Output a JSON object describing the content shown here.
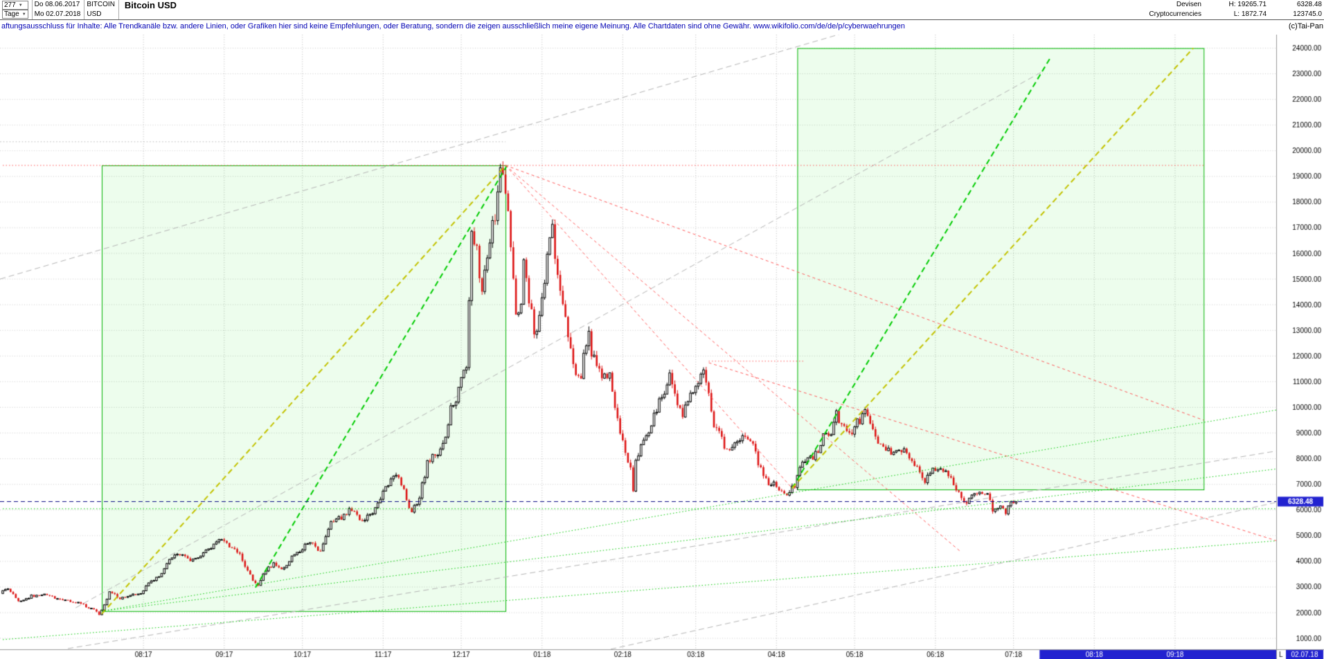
{
  "header": {
    "bars_count": "277",
    "timeframe": "Tage",
    "date_from": "Do 08.06.2017",
    "date_to": "Mo 02.07.2018",
    "symbol": "BITCOIN",
    "currency": "USD",
    "title": "Bitcoin USD",
    "category_line1": "Devisen",
    "category_line2": "Cryptocurrencies",
    "high": "H: 19265.71",
    "low": "L: 1872.74",
    "last_price": "6328.48",
    "volume": "123745.0"
  },
  "disclaimer": {
    "text": "aftungsausschluss für Inhalte: Alle Trendkanäle bzw. andere Linien, oder Grafiken hier sind keine Empfehlungen, oder Beratung, sondern die zeigen ausschließlich meine eigene Meinung. Alle Chartdaten sind ohne Gewähr.  www.wikifolio.com/de/de/p/cyberwaehrungen",
    "copyright": "(c)Tai-Pan"
  },
  "colors": {
    "up_border": "#000000",
    "up_fill": "#ffffff",
    "down": "#dd1414",
    "box_border": "#00b400",
    "box_fill": "rgba(0,220,0,0.07)",
    "green": "#00cc00",
    "yellow": "#c3c300",
    "red": "#ff5a5a",
    "gray": "#b4b4b4",
    "navy": "#000080",
    "blue_tag": "#2222d0",
    "axis_text": "#000000"
  },
  "chart_data": {
    "type": "candlestick",
    "title": "Bitcoin USD",
    "period_from": "08.06.2017",
    "period_to": "02.07.2018",
    "high": 19265.71,
    "low": 1872.74,
    "current_price": 6328.48,
    "current_price_label": "6328.48",
    "last_day": 389,
    "y_axis": {
      "min": 1000,
      "max": 24000,
      "step": 1000
    },
    "x_axis": {
      "ticks": [
        {
          "label": "08:17",
          "day": 54
        },
        {
          "label": "09:17",
          "day": 85
        },
        {
          "label": "10:17",
          "day": 115
        },
        {
          "label": "11:17",
          "day": 146
        },
        {
          "label": "12:17",
          "day": 176
        },
        {
          "label": "01:18",
          "day": 207
        },
        {
          "label": "02:18",
          "day": 238
        },
        {
          "label": "03:18",
          "day": 266
        },
        {
          "label": "04:18",
          "day": 297
        },
        {
          "label": "05:18",
          "day": 327
        },
        {
          "label": "06:18",
          "day": 358
        },
        {
          "label": "07:18",
          "day": 388
        },
        {
          "label": "08:18",
          "day": 419
        },
        {
          "label": "09:18",
          "day": 450
        }
      ],
      "future_highlight_from_day": 398,
      "last_marker": "L",
      "last_date": "02.07.18"
    },
    "price_waypoints": [
      [
        0,
        2750
      ],
      [
        3,
        2950
      ],
      [
        7,
        2420
      ],
      [
        12,
        2650
      ],
      [
        17,
        2700
      ],
      [
        20,
        2600
      ],
      [
        24,
        2500
      ],
      [
        27,
        2450
      ],
      [
        31,
        2350
      ],
      [
        33,
        2250
      ],
      [
        36,
        2100
      ],
      [
        38,
        1950
      ],
      [
        40,
        2300
      ],
      [
        42,
        2800
      ],
      [
        44,
        2700
      ],
      [
        46,
        2550
      ],
      [
        48,
        2600
      ],
      [
        50,
        2700
      ],
      [
        52,
        2740
      ],
      [
        54,
        2780
      ],
      [
        56,
        3000
      ],
      [
        58,
        3250
      ],
      [
        61,
        3420
      ],
      [
        63,
        3700
      ],
      [
        65,
        4050
      ],
      [
        68,
        4350
      ],
      [
        71,
        4150
      ],
      [
        73,
        4080
      ],
      [
        75,
        4050
      ],
      [
        77,
        4200
      ],
      [
        79,
        4380
      ],
      [
        81,
        4500
      ],
      [
        83,
        4700
      ],
      [
        85,
        4850
      ],
      [
        88,
        4600
      ],
      [
        90,
        4400
      ],
      [
        92,
        4250
      ],
      [
        95,
        3650
      ],
      [
        97,
        3300
      ],
      [
        99,
        3050
      ],
      [
        101,
        3450
      ],
      [
        103,
        3750
      ],
      [
        105,
        3900
      ],
      [
        107,
        3750
      ],
      [
        109,
        3700
      ],
      [
        112,
        4200
      ],
      [
        115,
        4380
      ],
      [
        117,
        4600
      ],
      [
        119,
        4750
      ],
      [
        121,
        4550
      ],
      [
        123,
        4350
      ],
      [
        125,
        5050
      ],
      [
        127,
        5600
      ],
      [
        129,
        5650
      ],
      [
        131,
        5700
      ],
      [
        133,
        5900
      ],
      [
        135,
        6050
      ],
      [
        137,
        5750
      ],
      [
        139,
        5600
      ],
      [
        141,
        5800
      ],
      [
        143,
        5950
      ],
      [
        146,
        6450
      ],
      [
        148,
        6900
      ],
      [
        150,
        7150
      ],
      [
        152,
        7300
      ],
      [
        153,
        7400
      ],
      [
        155,
        6700
      ],
      [
        156,
        6350
      ],
      [
        158,
        5900
      ],
      [
        160,
        6300
      ],
      [
        161,
        6550
      ],
      [
        163,
        7400
      ],
      [
        164,
        7900
      ],
      [
        166,
        8050
      ],
      [
        167,
        8150
      ],
      [
        169,
        8400
      ],
      [
        171,
        8800
      ],
      [
        173,
        9900
      ],
      [
        175,
        10300
      ],
      [
        176,
        10850
      ],
      [
        178,
        11300
      ],
      [
        179,
        11700
      ],
      [
        180,
        14000
      ],
      [
        181,
        16650
      ],
      [
        182,
        16450
      ],
      [
        183,
        16250
      ],
      [
        184,
        15200
      ],
      [
        185,
        14600
      ],
      [
        186,
        15500
      ],
      [
        188,
        16700
      ],
      [
        190,
        17500
      ],
      [
        191,
        18500
      ],
      [
        192,
        19200
      ],
      [
        193,
        19350
      ],
      [
        194,
        18500
      ],
      [
        195,
        17700
      ],
      [
        196,
        16400
      ],
      [
        197,
        15100
      ],
      [
        198,
        13800
      ],
      [
        199,
        13900
      ],
      [
        200,
        14000
      ],
      [
        201,
        15600
      ],
      [
        202,
        15000
      ],
      [
        203,
        14300
      ],
      [
        204,
        13600
      ],
      [
        205,
        12900
      ],
      [
        206,
        13200
      ],
      [
        207,
        13500
      ],
      [
        208,
        14300
      ],
      [
        209,
        15000
      ],
      [
        210,
        16000
      ],
      [
        212,
        17000
      ],
      [
        213,
        16000
      ],
      [
        214,
        15000
      ],
      [
        215,
        14300
      ],
      [
        217,
        13400
      ],
      [
        218,
        12800
      ],
      [
        220,
        11500
      ],
      [
        221,
        11300
      ],
      [
        223,
        11200
      ],
      [
        224,
        11900
      ],
      [
        226,
        12900
      ],
      [
        227,
        12200
      ],
      [
        229,
        11600
      ],
      [
        231,
        11300
      ],
      [
        232,
        11200
      ],
      [
        234,
        11350
      ],
      [
        236,
        10100
      ],
      [
        238,
        9100
      ],
      [
        240,
        8300
      ],
      [
        242,
        7600
      ],
      [
        243,
        6700
      ],
      [
        244,
        7800
      ],
      [
        245,
        8200
      ],
      [
        247,
        8600
      ],
      [
        249,
        9100
      ],
      [
        250,
        9450
      ],
      [
        252,
        9900
      ],
      [
        253,
        10250
      ],
      [
        255,
        10700
      ],
      [
        257,
        11250
      ],
      [
        259,
        10500
      ],
      [
        261,
        9900
      ],
      [
        262,
        9650
      ],
      [
        264,
        10350
      ],
      [
        266,
        10700
      ],
      [
        268,
        11000
      ],
      [
        270,
        11450
      ],
      [
        272,
        10700
      ],
      [
        274,
        9300
      ],
      [
        276,
        9100
      ],
      [
        277,
        8800
      ],
      [
        279,
        8250
      ],
      [
        281,
        8400
      ],
      [
        283,
        8550
      ],
      [
        285,
        8900
      ],
      [
        286,
        8950
      ],
      [
        288,
        8700
      ],
      [
        289,
        8450
      ],
      [
        291,
        7850
      ],
      [
        293,
        7400
      ],
      [
        295,
        6900
      ],
      [
        297,
        7000
      ],
      [
        299,
        6850
      ],
      [
        300,
        6750
      ],
      [
        302,
        6650
      ],
      [
        303,
        6800
      ],
      [
        305,
        6850
      ],
      [
        307,
        7600
      ],
      [
        308,
        7950
      ],
      [
        310,
        7980
      ],
      [
        311,
        8000
      ],
      [
        313,
        8200
      ],
      [
        314,
        8350
      ],
      [
        316,
        8850
      ],
      [
        318,
        8900
      ],
      [
        319,
        8950
      ],
      [
        321,
        9700
      ],
      [
        323,
        9350
      ],
      [
        324,
        9250
      ],
      [
        326,
        9150
      ],
      [
        327,
        9100
      ],
      [
        329,
        9400
      ],
      [
        330,
        9500
      ],
      [
        332,
        9750
      ],
      [
        334,
        9400
      ],
      [
        335,
        9150
      ],
      [
        337,
        8500
      ],
      [
        339,
        8470
      ],
      [
        340,
        8450
      ],
      [
        342,
        8300
      ],
      [
        343,
        8250
      ],
      [
        345,
        8350
      ],
      [
        346,
        8400
      ],
      [
        348,
        8250
      ],
      [
        349,
        8100
      ],
      [
        351,
        7800
      ],
      [
        352,
        7600
      ],
      [
        354,
        7300
      ],
      [
        355,
        7150
      ],
      [
        357,
        7450
      ],
      [
        359,
        7550
      ],
      [
        360,
        7600
      ],
      [
        362,
        7630
      ],
      [
        363,
        7650
      ],
      [
        365,
        7200
      ],
      [
        367,
        6800
      ],
      [
        369,
        6450
      ],
      [
        371,
        6350
      ],
      [
        373,
        6550
      ],
      [
        374,
        6650
      ],
      [
        376,
        6750
      ],
      [
        378,
        6700
      ],
      [
        379,
        6650
      ],
      [
        381,
        5900
      ],
      [
        383,
        6150
      ],
      [
        385,
        6000
      ],
      [
        386,
        5880
      ],
      [
        388,
        6350
      ],
      [
        389,
        6330
      ]
    ],
    "overlays": {
      "boxes": [
        {
          "name": "trend-box-2017",
          "from": [
            38,
            2060
          ],
          "to": [
            193,
            19430
          ]
        },
        {
          "name": "trend-box-2018",
          "from": [
            305,
            6800
          ],
          "to": [
            461,
            24000
          ]
        }
      ],
      "lines": [
        {
          "color": "yellow",
          "dash": "long",
          "width": 2,
          "from": [
            38,
            1950
          ],
          "to": [
            193,
            19430
          ]
        },
        {
          "color": "green",
          "dash": "long",
          "width": 2,
          "from": [
            97,
            2980
          ],
          "to": [
            194,
            19500
          ]
        },
        {
          "color": "green",
          "dash": "long",
          "width": 2,
          "from": [
            303,
            6850
          ],
          "to": [
            402,
            23600
          ]
        },
        {
          "color": "yellow",
          "dash": "long",
          "width": 2,
          "from": [
            303,
            6850
          ],
          "to": [
            457,
            24000
          ]
        },
        {
          "color": "red",
          "dash": "short",
          "width": 1,
          "from": [
            193,
            19430
          ],
          "to": [
            303,
            6850
          ]
        },
        {
          "color": "red",
          "dash": "short",
          "width": 1,
          "from": [
            193,
            19430
          ],
          "to": [
            368,
            4350
          ]
        },
        {
          "color": "red",
          "dash": "short",
          "width": 1,
          "from": [
            193,
            19430
          ],
          "to": [
            461,
            9500
          ]
        },
        {
          "color": "red",
          "dash": "short",
          "width": 1,
          "from": [
            271,
            11740
          ],
          "to": [
            489,
            4800
          ]
        },
        {
          "color": "red",
          "dash": "dot",
          "width": 1,
          "from": [
            0,
            19430
          ],
          "to": [
            461,
            19430
          ]
        },
        {
          "color": "red",
          "dash": "dot",
          "width": 1,
          "from": [
            271,
            11800
          ],
          "to": [
            308,
            11800
          ]
        },
        {
          "color": "gray",
          "dash": "long",
          "width": 1,
          "from": [
            -1,
            15000
          ],
          "to": [
            330,
            24800
          ]
        },
        {
          "color": "gray",
          "dash": "long",
          "width": 1,
          "from": [
            25,
            600
          ],
          "to": [
            489,
            8300
          ]
        },
        {
          "color": "gray",
          "dash": "long",
          "width": 1,
          "from": [
            230,
            500
          ],
          "to": [
            489,
            6300
          ]
        },
        {
          "color": "gray",
          "dash": "long",
          "width": 1,
          "from": [
            28,
            2190
          ],
          "to": [
            399,
            23080
          ]
        },
        {
          "color": "gray",
          "dash": "dot",
          "width": 1,
          "from": [
            -1,
            20350
          ],
          "to": [
            193,
            20350
          ]
        },
        {
          "color": "green",
          "dash": "dot",
          "width": 1,
          "from": [
            38,
            2060
          ],
          "to": [
            489,
            9900
          ]
        },
        {
          "color": "green",
          "dash": "dot",
          "width": 1,
          "from": [
            38,
            2060
          ],
          "to": [
            489,
            7600
          ]
        },
        {
          "color": "green",
          "dash": "dot",
          "width": 1,
          "from": [
            0,
            950
          ],
          "to": [
            489,
            4800
          ]
        },
        {
          "color": "green",
          "dash": "dot",
          "width": 1,
          "from": [
            0,
            6050
          ],
          "to": [
            489,
            6050
          ]
        }
      ]
    }
  }
}
